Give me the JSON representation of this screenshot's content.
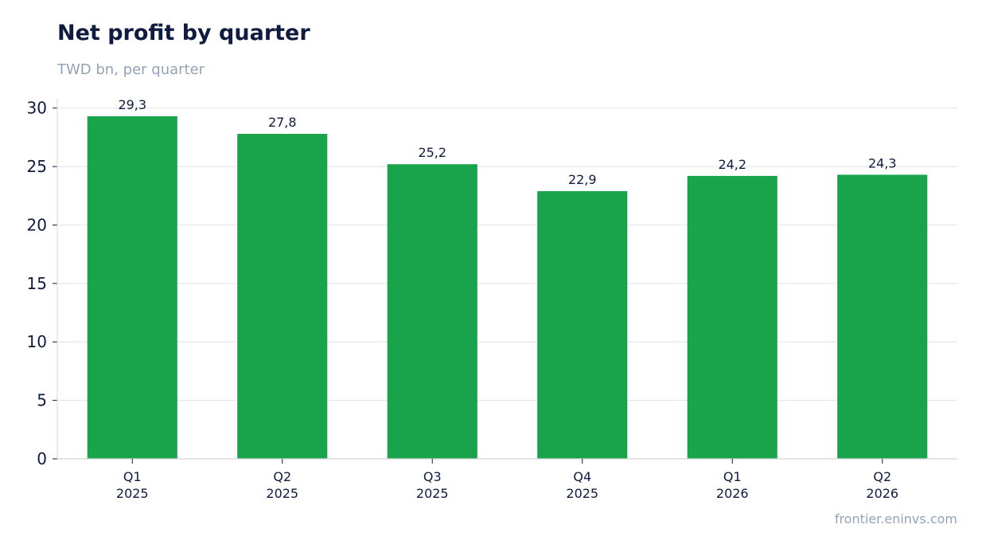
{
  "header": {
    "title": "Net profit by quarter",
    "subtitle": "TWD bn, per quarter"
  },
  "footer": {
    "source": "frontier.eninvs.com"
  },
  "colors": {
    "bar": "#19a34a",
    "grid": "#e5e7eb",
    "axis": "#d1d5db",
    "text": "#0f1b40",
    "muted": "#94a3b8"
  },
  "chart_data": {
    "type": "bar",
    "title": "Net profit by quarter",
    "subtitle": "TWD bn, per quarter",
    "categories": [
      [
        "Q1",
        "2025"
      ],
      [
        "Q2",
        "2025"
      ],
      [
        "Q3",
        "2025"
      ],
      [
        "Q4",
        "2025"
      ],
      [
        "Q1",
        "2026"
      ],
      [
        "Q2",
        "2026"
      ]
    ],
    "values": [
      29.3,
      27.8,
      25.2,
      22.9,
      24.2,
      24.3
    ],
    "data_labels": [
      "29,3",
      "27,8",
      "25,2",
      "22,9",
      "24,2",
      "24,3"
    ],
    "yticks": [
      0,
      5,
      10,
      15,
      20,
      25,
      30
    ],
    "ylim": [
      0,
      30.8
    ],
    "xlabel": "",
    "ylabel": "",
    "grid": true,
    "legend": "none"
  }
}
